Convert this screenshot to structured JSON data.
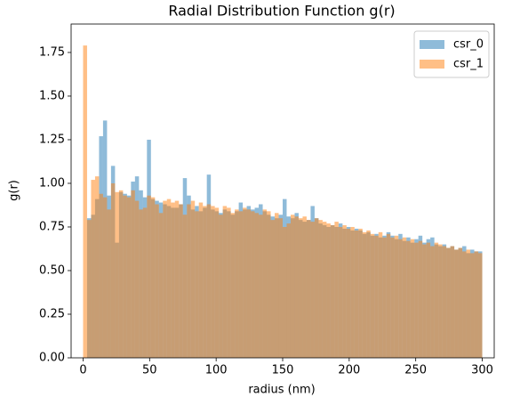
{
  "chart_data": {
    "type": "histogram",
    "title": "Radial Distribution Function g(r)",
    "x_label": "radius (nm)",
    "y_label": "g(r)",
    "bins": [
      0,
      3,
      6,
      9,
      12,
      15,
      18,
      21,
      24,
      27,
      30,
      33,
      36,
      39,
      42,
      45,
      48,
      51,
      54,
      57,
      60,
      63,
      66,
      69,
      72,
      75,
      78,
      81,
      84,
      87,
      90,
      93,
      96,
      99,
      102,
      105,
      108,
      111,
      114,
      117,
      120,
      123,
      126,
      129,
      132,
      135,
      138,
      141,
      144,
      147,
      150,
      153,
      156,
      159,
      162,
      165,
      168,
      171,
      174,
      177,
      180,
      183,
      186,
      189,
      192,
      195,
      198,
      201,
      204,
      207,
      210,
      213,
      216,
      219,
      222,
      225,
      228,
      231,
      234,
      237,
      240,
      243,
      246,
      249,
      252,
      255,
      258,
      261,
      264,
      267,
      270,
      273,
      276,
      279,
      282,
      285,
      288,
      291,
      294,
      297,
      300
    ],
    "series": [
      {
        "name": "csr_0",
        "color": "#1f77b4",
        "values": [
          0,
          0.8,
          0.82,
          0.91,
          1.27,
          1.36,
          0.93,
          1.1,
          0.66,
          0.95,
          0.94,
          0.93,
          1.01,
          1.04,
          0.96,
          0.92,
          1.25,
          0.91,
          0.9,
          0.89,
          0.88,
          0.87,
          0.86,
          0.86,
          0.88,
          1.03,
          0.93,
          0.85,
          0.87,
          0.84,
          0.86,
          1.05,
          0.85,
          0.84,
          0.83,
          0.85,
          0.84,
          0.82,
          0.84,
          0.89,
          0.85,
          0.87,
          0.85,
          0.86,
          0.88,
          0.84,
          0.82,
          0.81,
          0.8,
          0.82,
          0.91,
          0.81,
          0.8,
          0.83,
          0.79,
          0.78,
          0.79,
          0.87,
          0.8,
          0.77,
          0.76,
          0.75,
          0.76,
          0.75,
          0.77,
          0.74,
          0.75,
          0.73,
          0.74,
          0.73,
          0.71,
          0.72,
          0.7,
          0.71,
          0.69,
          0.7,
          0.72,
          0.7,
          0.68,
          0.71,
          0.67,
          0.69,
          0.66,
          0.68,
          0.7,
          0.66,
          0.68,
          0.69,
          0.65,
          0.64,
          0.65,
          0.63,
          0.64,
          0.62,
          0.63,
          0.64,
          0.6,
          0.62,
          0.61,
          0.61
        ]
      },
      {
        "name": "csr_1",
        "color": "#ff7f0e",
        "values": [
          1.79,
          0.79,
          1.02,
          1.04,
          0.94,
          0.92,
          0.85,
          1.0,
          0.95,
          0.96,
          0.93,
          0.92,
          0.96,
          0.9,
          0.85,
          0.86,
          0.93,
          0.92,
          0.88,
          0.83,
          0.9,
          0.91,
          0.89,
          0.9,
          0.88,
          0.82,
          0.88,
          0.9,
          0.84,
          0.89,
          0.87,
          0.88,
          0.87,
          0.86,
          0.82,
          0.87,
          0.86,
          0.83,
          0.85,
          0.84,
          0.86,
          0.85,
          0.84,
          0.83,
          0.82,
          0.85,
          0.84,
          0.79,
          0.83,
          0.8,
          0.75,
          0.77,
          0.82,
          0.81,
          0.8,
          0.81,
          0.79,
          0.78,
          0.8,
          0.79,
          0.78,
          0.77,
          0.76,
          0.78,
          0.75,
          0.76,
          0.74,
          0.75,
          0.73,
          0.74,
          0.72,
          0.73,
          0.71,
          0.7,
          0.72,
          0.69,
          0.71,
          0.69,
          0.7,
          0.68,
          0.69,
          0.67,
          0.68,
          0.66,
          0.67,
          0.65,
          0.66,
          0.64,
          0.66,
          0.65,
          0.64,
          0.63,
          0.64,
          0.62,
          0.63,
          0.61,
          0.62,
          0.6,
          0.61,
          0.6
        ]
      }
    ],
    "opacity": 0.5,
    "xlim": [
      -9,
      309
    ],
    "ylim": [
      0,
      1.913
    ],
    "xticks": [
      0,
      50,
      100,
      150,
      200,
      250,
      300
    ],
    "yticks": [
      {
        "value": 0,
        "label": "0.00"
      },
      {
        "value": 0.25,
        "label": "0.25"
      },
      {
        "value": 0.5,
        "label": "0.50"
      },
      {
        "value": 0.75,
        "label": "0.75"
      },
      {
        "value": 1,
        "label": "1.00"
      },
      {
        "value": 1.25,
        "label": "1.25"
      },
      {
        "value": 1.5,
        "label": "1.50"
      },
      {
        "value": 1.75,
        "label": "1.75"
      }
    ],
    "legend": "upper right"
  }
}
